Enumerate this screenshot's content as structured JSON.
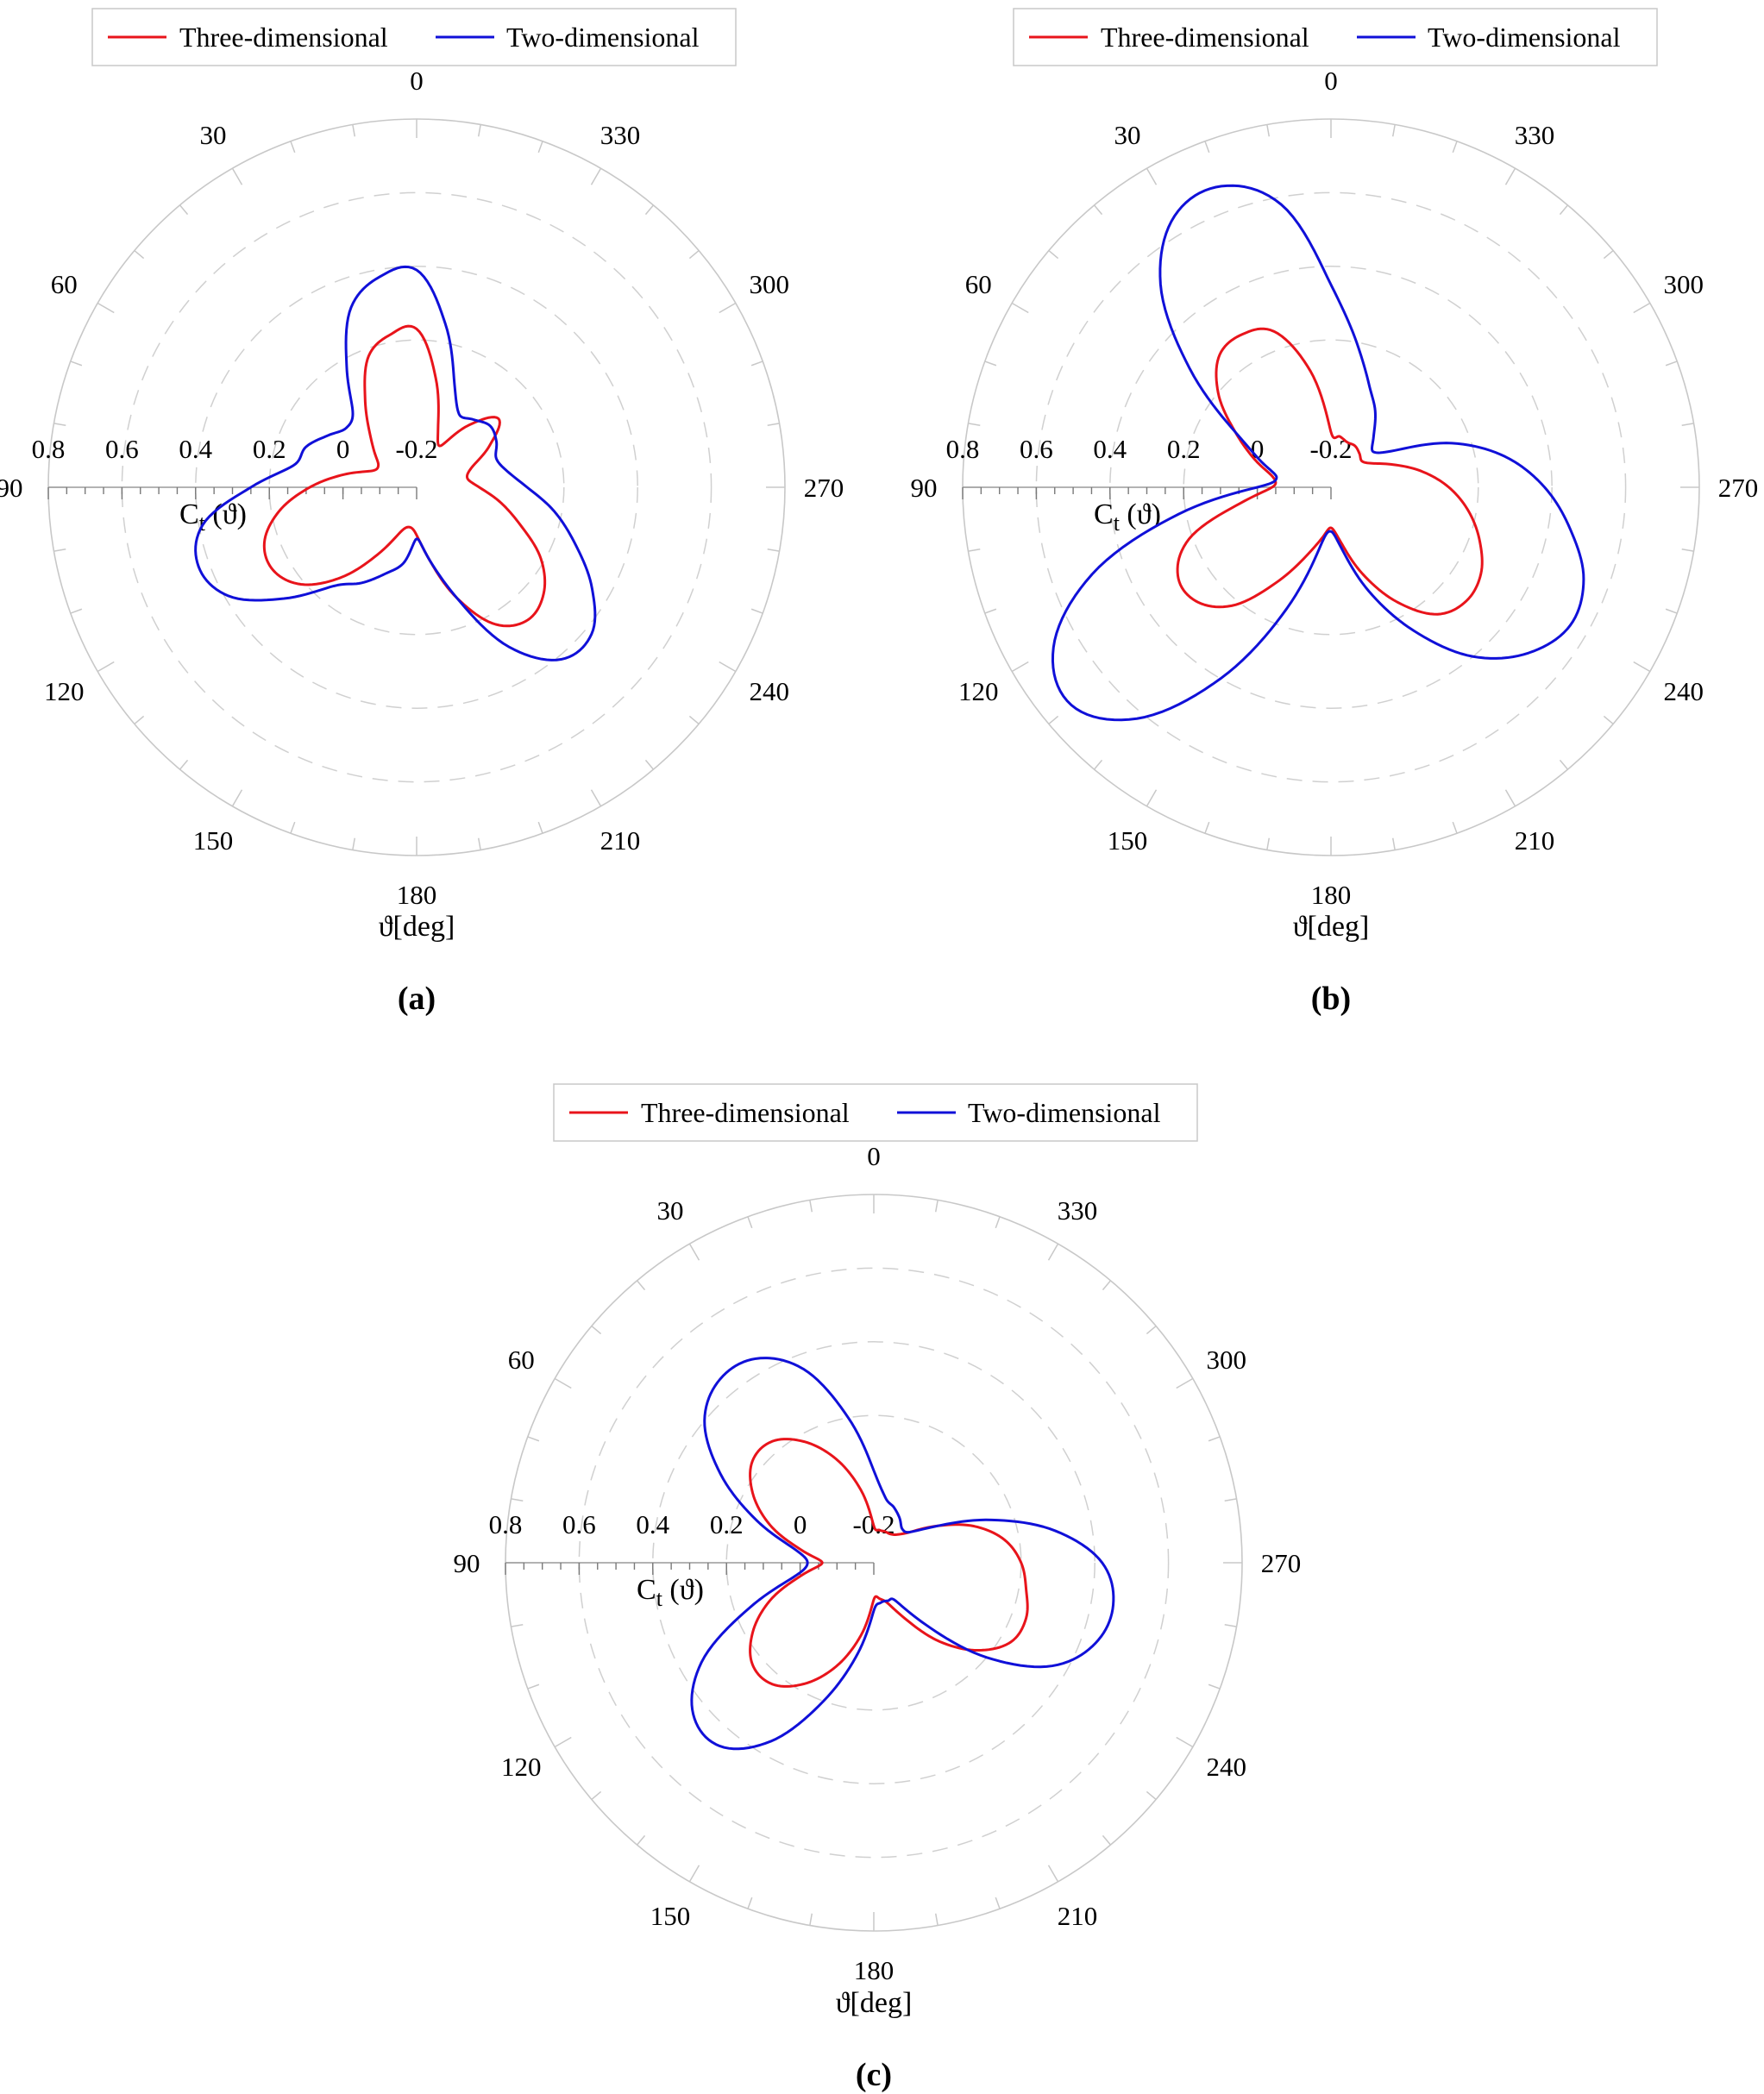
{
  "colors": {
    "three_dimensional": "#e8141b",
    "two_dimensional": "#1010d8",
    "grid": "#c8c8c8"
  },
  "chart_data": [
    {
      "type": "polar-line",
      "caption": "(a)",
      "legend": [
        "Three-dimensional",
        "Two-dimensional"
      ],
      "angle_ticks": [
        "0",
        "30",
        "60",
        "90",
        "120",
        "150",
        "180",
        "210",
        "240",
        "270",
        "300",
        "330"
      ],
      "angle_direction": "clockwise, 0 at top",
      "angle_label": "ϑ[deg]",
      "radial_label": "C",
      "radial_label_sub": "t",
      "radial_label_arg": " (ϑ)",
      "radial_ticks": [
        "0.8",
        "0.6",
        "0.4",
        "0.2",
        "0",
        "-0.2"
      ],
      "rlim": [
        -0.2,
        0.8
      ],
      "grid": true,
      "legend_position": "top",
      "series": [
        {
          "name": "Three-dimensional",
          "color": "#e8141b",
          "theta": [
            0,
            10,
            20,
            30,
            40,
            50,
            60,
            70,
            80,
            90,
            100,
            110,
            120,
            130,
            140,
            150,
            160,
            170,
            180,
            190,
            200,
            210,
            220,
            230,
            240,
            250,
            260,
            270,
            280,
            290,
            300,
            310,
            320,
            330,
            340,
            350,
            360
          ],
          "r": [
            0.23,
            0.22,
            0.18,
            0.08,
            0.0,
            -0.05,
            -0.08,
            -0.07,
            0.0,
            0.09,
            0.18,
            0.24,
            0.25,
            0.21,
            0.12,
            0.01,
            -0.07,
            -0.09,
            -0.07,
            0.0,
            0.12,
            0.23,
            0.27,
            0.25,
            0.19,
            0.1,
            0.03,
            -0.03,
            -0.06,
            -0.04,
            0.03,
            0.09,
            0.02,
            -0.07,
            -0.03,
            0.1,
            0.23
          ]
        },
        {
          "name": "Two-dimensional",
          "color": "#1010d8",
          "theta": [
            0,
            10,
            20,
            30,
            40,
            50,
            60,
            70,
            80,
            90,
            100,
            110,
            120,
            130,
            140,
            150,
            160,
            170,
            180,
            190,
            200,
            210,
            220,
            230,
            240,
            250,
            260,
            270,
            280,
            290,
            300,
            310,
            320,
            330,
            340,
            350,
            360
          ],
          "r": [
            0.39,
            0.38,
            0.32,
            0.18,
            0.07,
            0.05,
            0.08,
            0.12,
            0.14,
            0.25,
            0.39,
            0.43,
            0.39,
            0.27,
            0.15,
            0.1,
            0.05,
            0.01,
            -0.06,
            0.0,
            0.12,
            0.3,
            0.41,
            0.42,
            0.35,
            0.26,
            0.18,
            0.1,
            0.05,
            0.03,
            0.05,
            0.06,
            0.04,
            0.03,
            0.1,
            0.25,
            0.39
          ]
        }
      ]
    },
    {
      "type": "polar-line",
      "caption": "(b)",
      "legend": [
        "Three-dimensional",
        "Two-dimensional"
      ],
      "angle_ticks": [
        "0",
        "30",
        "60",
        "90",
        "120",
        "150",
        "180",
        "210",
        "240",
        "270",
        "300",
        "330"
      ],
      "angle_direction": "clockwise, 0 at top",
      "angle_label": "ϑ[deg]",
      "radial_label": "C",
      "radial_label_sub": "t",
      "radial_label_arg": " (ϑ)",
      "radial_ticks": [
        "0.8",
        "0.6",
        "0.4",
        "0.2",
        "0",
        "-0.2"
      ],
      "rlim": [
        -0.2,
        0.8
      ],
      "grid": true,
      "legend_position": "top",
      "series": [
        {
          "name": "Three-dimensional",
          "color": "#e8141b",
          "theta": [
            0,
            10,
            20,
            30,
            40,
            50,
            60,
            70,
            80,
            90,
            100,
            110,
            120,
            130,
            140,
            150,
            160,
            170,
            180,
            190,
            200,
            210,
            220,
            230,
            240,
            250,
            260,
            270,
            280,
            290,
            300,
            310,
            320,
            330,
            340,
            350,
            360
          ],
          "r": [
            -0.05,
            0.12,
            0.25,
            0.28,
            0.27,
            0.2,
            0.1,
            0.02,
            -0.04,
            -0.04,
            0.05,
            0.21,
            0.28,
            0.28,
            0.22,
            0.1,
            0.0,
            -0.06,
            -0.09,
            -0.05,
            0.05,
            0.16,
            0.25,
            0.28,
            0.27,
            0.23,
            0.18,
            0.12,
            0.05,
            -0.02,
            -0.07,
            -0.09,
            -0.08,
            -0.07,
            -0.07,
            -0.06,
            -0.05
          ]
        },
        {
          "name": "Two-dimensional",
          "color": "#1010d8",
          "theta": [
            0,
            10,
            20,
            30,
            40,
            50,
            60,
            70,
            80,
            90,
            100,
            110,
            120,
            130,
            140,
            150,
            160,
            170,
            180,
            190,
            200,
            210,
            220,
            230,
            240,
            250,
            260,
            270,
            280,
            290,
            300,
            310,
            320,
            330,
            340,
            350,
            360
          ],
          "r": [
            0.35,
            0.58,
            0.67,
            0.65,
            0.52,
            0.3,
            0.1,
            0.0,
            -0.05,
            0.0,
            0.22,
            0.49,
            0.67,
            0.72,
            0.62,
            0.4,
            0.15,
            -0.04,
            -0.08,
            -0.03,
            0.1,
            0.25,
            0.4,
            0.5,
            0.55,
            0.53,
            0.46,
            0.38,
            0.28,
            0.15,
            0.0,
            -0.05,
            -0.02,
            0.04,
            0.1,
            0.2,
            0.35
          ]
        }
      ]
    },
    {
      "type": "polar-line",
      "caption": "(c)",
      "legend": [
        "Three-dimensional",
        "Two-dimensional"
      ],
      "angle_ticks": [
        "0",
        "30",
        "60",
        "90",
        "120",
        "150",
        "180",
        "210",
        "240",
        "270",
        "300",
        "330"
      ],
      "angle_direction": "clockwise, 0 at top",
      "angle_label": "ϑ[deg]",
      "radial_label": "C",
      "radial_label_sub": "t",
      "radial_label_arg": " (ϑ)",
      "radial_ticks": [
        "0.8",
        "0.6",
        "0.4",
        "0.2",
        "0",
        "-0.2"
      ],
      "rlim": [
        -0.2,
        0.8
      ],
      "grid": true,
      "legend_position": "top",
      "series": [
        {
          "name": "Three-dimensional",
          "color": "#e8141b",
          "theta": [
            0,
            10,
            20,
            30,
            40,
            50,
            60,
            70,
            80,
            90,
            100,
            110,
            120,
            130,
            140,
            150,
            160,
            170,
            180,
            190,
            200,
            210,
            220,
            230,
            240,
            250,
            260,
            270,
            280,
            290,
            300,
            310,
            320,
            330,
            340,
            350,
            360
          ],
          "r": [
            -0.1,
            0.0,
            0.1,
            0.18,
            0.23,
            0.23,
            0.18,
            0.1,
            0.0,
            -0.06,
            0.0,
            0.1,
            0.18,
            0.23,
            0.23,
            0.18,
            0.1,
            0.0,
            -0.1,
            -0.1,
            -0.08,
            -0.02,
            0.08,
            0.17,
            0.23,
            0.24,
            0.22,
            0.2,
            0.16,
            0.09,
            0.0,
            -0.07,
            -0.1,
            -0.11,
            -0.11,
            -0.11,
            -0.1
          ]
        },
        {
          "name": "Two-dimensional",
          "color": "#1010d8",
          "theta": [
            0,
            10,
            20,
            30,
            40,
            50,
            60,
            70,
            80,
            90,
            100,
            110,
            120,
            130,
            140,
            150,
            160,
            170,
            180,
            190,
            200,
            210,
            220,
            230,
            240,
            250,
            260,
            270,
            280,
            290,
            300,
            310,
            320,
            330,
            340,
            350,
            360
          ],
          "r": [
            0.05,
            0.2,
            0.36,
            0.44,
            0.45,
            0.4,
            0.28,
            0.14,
            0.02,
            -0.02,
            0.02,
            0.16,
            0.34,
            0.44,
            0.45,
            0.36,
            0.2,
            0.05,
            -0.07,
            -0.09,
            -0.09,
            -0.08,
            0.02,
            0.2,
            0.36,
            0.44,
            0.46,
            0.42,
            0.3,
            0.14,
            0.0,
            -0.07,
            -0.08,
            -0.06,
            -0.04,
            -0.02,
            0.05
          ]
        }
      ]
    }
  ]
}
